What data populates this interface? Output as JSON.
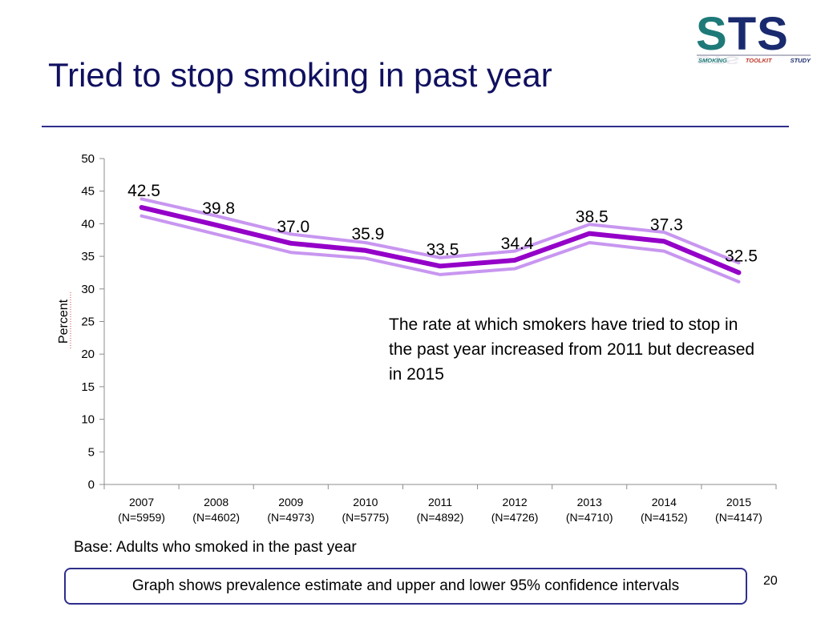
{
  "slide": {
    "title": "Tried to stop smoking in past year",
    "annotation": "The rate at which smokers have tried to stop in the past year increased from 2011 but decreased in 2015",
    "base_note": "Base: Adults who smoked in the past year",
    "footnote": "Graph shows prevalence estimate and upper and lower 95% confidence intervals",
    "page_number": "20"
  },
  "logo": {
    "letters": [
      "S",
      "T",
      "S"
    ],
    "sub": [
      "SMOKING",
      "TOOLKIT",
      "STUDY"
    ],
    "colors": {
      "teal": "#1e7a78",
      "navy": "#1a2a6e",
      "red": "#c0392b"
    }
  },
  "chart_data": {
    "type": "line",
    "ylabel": "Percent",
    "ylim": [
      0,
      50
    ],
    "yticks": [
      0,
      5,
      10,
      15,
      20,
      25,
      30,
      35,
      40,
      45,
      50
    ],
    "categories": [
      [
        "2007",
        "(N=5959)"
      ],
      [
        "2008",
        "(N=4602)"
      ],
      [
        "2009",
        "(N=4973)"
      ],
      [
        "2010",
        "(N=5775)"
      ],
      [
        "2011",
        "(N=4892)"
      ],
      [
        "2012",
        "(N=4726)"
      ],
      [
        "2013",
        "(N=4710)"
      ],
      [
        "2014",
        "(N=4152)"
      ],
      [
        "2015",
        "(N=4147)"
      ]
    ],
    "series": [
      {
        "role": "estimate",
        "color": "#9400c8",
        "values": [
          42.5,
          39.8,
          37.0,
          35.9,
          33.5,
          34.4,
          38.5,
          37.3,
          32.5
        ],
        "labels": [
          "42.5",
          "39.8",
          "37.0",
          "35.9",
          "33.5",
          "34.4",
          "38.5",
          "37.3",
          "32.5"
        ]
      },
      {
        "role": "upper-ci",
        "color": "#c896f0",
        "values": [
          43.8,
          41.2,
          38.4,
          37.1,
          34.8,
          35.8,
          39.9,
          38.7,
          34.0
        ]
      },
      {
        "role": "lower-ci",
        "color": "#c896f0",
        "values": [
          41.2,
          38.4,
          35.6,
          34.7,
          32.2,
          33.1,
          37.1,
          35.8,
          31.1
        ]
      }
    ],
    "grid": false,
    "legend": "none"
  }
}
